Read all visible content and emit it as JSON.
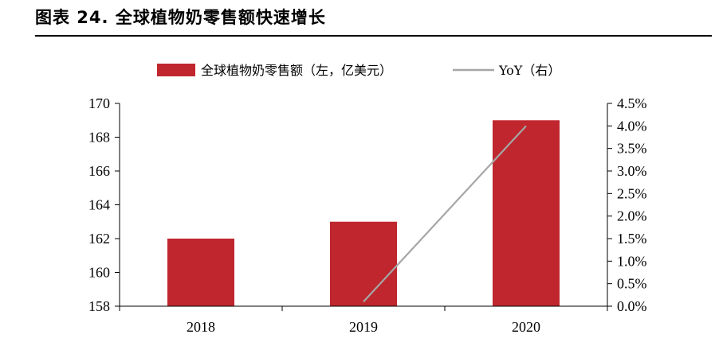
{
  "figure": {
    "title": "图表 24. 全球植物奶零售额快速增长"
  },
  "chart_data": {
    "type": "bar",
    "categories": [
      "2018",
      "2019",
      "2020"
    ],
    "series": [
      {
        "name": "全球植物奶零售额（左，亿美元）",
        "kind": "bar",
        "axis": "left",
        "color": "#C0262D",
        "values": [
          162,
          163,
          169
        ]
      },
      {
        "name": "YoY（右）",
        "kind": "line",
        "axis": "right",
        "color": "#A6A6A6",
        "values": [
          null,
          0.1,
          4.0
        ]
      }
    ],
    "y_left": {
      "min": 158,
      "max": 170,
      "step": 2,
      "ticks": [
        "158",
        "160",
        "162",
        "164",
        "166",
        "168",
        "170"
      ]
    },
    "y_right": {
      "min": 0,
      "max": 4.5,
      "step": 0.5,
      "ticks": [
        "0.0%",
        "0.5%",
        "1.0%",
        "1.5%",
        "2.0%",
        "2.5%",
        "3.0%",
        "3.5%",
        "4.0%",
        "4.5%"
      ]
    },
    "legend_position": "top-center",
    "grid": false
  }
}
